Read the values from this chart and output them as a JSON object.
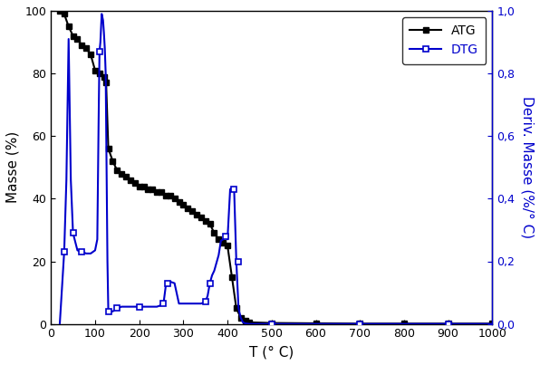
{
  "atg_x": [
    20,
    30,
    40,
    50,
    60,
    70,
    80,
    90,
    100,
    110,
    120,
    125,
    130,
    140,
    150,
    160,
    170,
    180,
    190,
    200,
    210,
    220,
    230,
    240,
    250,
    260,
    270,
    280,
    290,
    300,
    310,
    320,
    330,
    340,
    350,
    360,
    370,
    380,
    390,
    400,
    410,
    420,
    430,
    440,
    450,
    500,
    600,
    700,
    800,
    900,
    1000
  ],
  "atg_y": [
    100,
    99,
    95,
    92,
    91,
    89,
    88,
    86,
    81,
    80,
    79,
    77,
    56,
    52,
    49,
    48,
    47,
    46,
    45,
    44,
    44,
    43,
    43,
    42,
    42,
    41,
    41,
    40,
    39,
    38,
    37,
    36,
    35,
    34,
    33,
    32,
    29,
    27,
    26,
    25,
    15,
    5,
    2,
    1,
    0.5,
    0.3,
    0.2,
    0.1,
    0.1,
    0.1,
    0.1
  ],
  "atg_marker_x": [
    20,
    30,
    40,
    50,
    60,
    70,
    80,
    90,
    100,
    110,
    120,
    125,
    130,
    140,
    150,
    160,
    170,
    180,
    190,
    200,
    210,
    220,
    230,
    240,
    250,
    260,
    270,
    280,
    290,
    300,
    310,
    320,
    330,
    340,
    350,
    360,
    370,
    380,
    390,
    400,
    410,
    420,
    430,
    440,
    450,
    500,
    600,
    700,
    800,
    900,
    1000
  ],
  "atg_marker_y": [
    100,
    99,
    95,
    92,
    91,
    89,
    88,
    86,
    81,
    80,
    79,
    77,
    56,
    52,
    49,
    48,
    47,
    46,
    45,
    44,
    44,
    43,
    43,
    42,
    42,
    41,
    41,
    40,
    39,
    38,
    37,
    36,
    35,
    34,
    33,
    32,
    29,
    27,
    26,
    25,
    15,
    5,
    2,
    1,
    0.5,
    0.3,
    0.2,
    0.1,
    0.1,
    0.1,
    0.1
  ],
  "dtg_x": [
    20,
    30,
    35,
    40,
    45,
    50,
    60,
    70,
    80,
    90,
    100,
    105,
    108,
    110,
    112,
    115,
    118,
    120,
    122,
    124,
    126,
    128,
    130,
    135,
    140,
    145,
    150,
    160,
    170,
    180,
    190,
    200,
    220,
    240,
    250,
    255,
    260,
    265,
    270,
    280,
    290,
    300,
    310,
    320,
    330,
    340,
    350,
    355,
    360,
    365,
    370,
    375,
    380,
    385,
    390,
    395,
    400,
    403,
    406,
    410,
    415,
    420,
    425,
    430,
    435,
    440,
    445,
    450,
    500,
    600,
    700,
    800,
    900,
    1000
  ],
  "dtg_y": [
    0.0,
    0.23,
    0.46,
    0.91,
    0.46,
    0.29,
    0.235,
    0.23,
    0.225,
    0.225,
    0.235,
    0.27,
    0.65,
    0.87,
    0.9,
    0.99,
    0.97,
    0.93,
    0.88,
    0.8,
    0.5,
    0.2,
    0.04,
    0.04,
    0.04,
    0.045,
    0.05,
    0.055,
    0.055,
    0.055,
    0.055,
    0.055,
    0.055,
    0.055,
    0.06,
    0.065,
    0.12,
    0.13,
    0.135,
    0.13,
    0.065,
    0.065,
    0.065,
    0.065,
    0.065,
    0.065,
    0.07,
    0.09,
    0.13,
    0.155,
    0.17,
    0.195,
    0.22,
    0.265,
    0.27,
    0.28,
    0.27,
    0.35,
    0.43,
    0.435,
    0.43,
    0.2,
    0.05,
    0.02,
    0.005,
    0.002,
    0.001,
    0.0,
    0.0,
    0.0,
    0.0,
    0.0,
    0.0,
    0.0
  ],
  "dtg_marker_x": [
    30,
    50,
    70,
    110,
    130,
    150,
    200,
    255,
    265,
    350,
    360,
    395,
    415,
    425,
    500,
    700,
    900
  ],
  "dtg_marker_y": [
    0.23,
    0.29,
    0.23,
    0.87,
    0.04,
    0.05,
    0.055,
    0.065,
    0.13,
    0.07,
    0.13,
    0.28,
    0.43,
    0.2,
    0.0,
    0.0,
    0.0
  ],
  "atg_color": "#000000",
  "dtg_color": "#0000cc",
  "xlabel": "T (° C)",
  "ylabel_left": "Masse (%)",
  "ylabel_right": "Deriv. Masse (%/° C)",
  "xlim": [
    0,
    1000
  ],
  "ylim_left": [
    0,
    100
  ],
  "ylim_right": [
    0.0,
    1.0
  ],
  "xticks": [
    0,
    100,
    200,
    300,
    400,
    500,
    600,
    700,
    800,
    900,
    1000
  ],
  "yticks_left": [
    0,
    20,
    40,
    60,
    80,
    100
  ],
  "yticks_right": [
    0.0,
    0.2,
    0.4,
    0.6,
    0.8,
    1.0
  ],
  "ytick_labels_right": [
    "0,0",
    "0,2",
    "0,4",
    "0,6",
    "0,8",
    "1,0"
  ],
  "ytick_labels_left": [
    "0",
    "20",
    "40",
    "60",
    "80",
    "100"
  ],
  "legend_atg": "ATG",
  "legend_dtg": "DTG"
}
